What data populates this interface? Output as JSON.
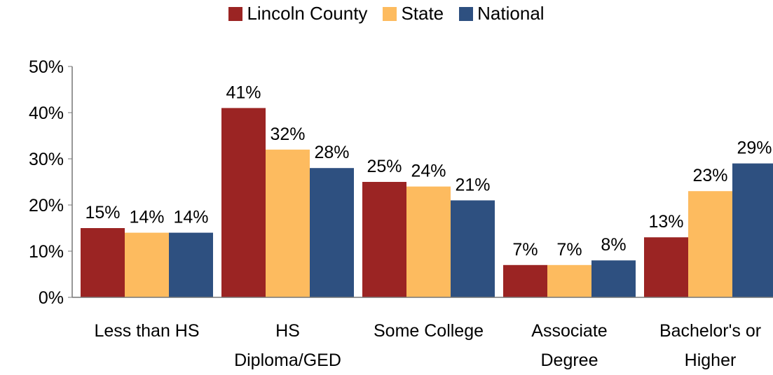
{
  "chart_data": {
    "type": "bar",
    "categories": [
      "Less than HS",
      "HS Diploma/GED",
      "Some College",
      "Associate Degree",
      "Bachelor's or Higher"
    ],
    "series": [
      {
        "name": "Lincoln County",
        "color": "#9b2423",
        "values": [
          15,
          41,
          25,
          7,
          13
        ],
        "value_labels": [
          "15%",
          "41%",
          "25%",
          "7%",
          "13%"
        ]
      },
      {
        "name": "State",
        "color": "#fdbb5f",
        "values": [
          14,
          32,
          24,
          7,
          23
        ],
        "value_labels": [
          "14%",
          "32%",
          "24%",
          "7%",
          "23%"
        ]
      },
      {
        "name": "National",
        "color": "#2e5080",
        "values": [
          14,
          28,
          21,
          8,
          29
        ],
        "value_labels": [
          "14%",
          "28%",
          "21%",
          "8%",
          "29%"
        ]
      }
    ],
    "ylim": [
      0,
      50
    ],
    "yticks": [
      {
        "value": 0,
        "label": "0%"
      },
      {
        "value": 10,
        "label": "10%"
      },
      {
        "value": 20,
        "label": "20%"
      },
      {
        "value": 30,
        "label": "30%"
      },
      {
        "value": 40,
        "label": "40%"
      },
      {
        "value": 50,
        "label": "50%"
      }
    ],
    "legend": "top"
  }
}
